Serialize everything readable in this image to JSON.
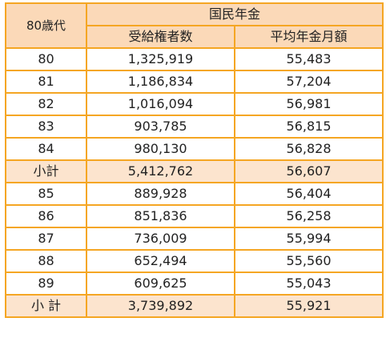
{
  "table": {
    "corner_label": "80歳代",
    "group_header": "国民年金",
    "col_recipients": "受給権者数",
    "col_avg_amount": "平均年金月額",
    "rows": [
      {
        "age": "80",
        "recipients": "1,325,919",
        "avg": "55,483",
        "subtotal": false
      },
      {
        "age": "81",
        "recipients": "1,186,834",
        "avg": "57,204",
        "subtotal": false
      },
      {
        "age": "82",
        "recipients": "1,016,094",
        "avg": "56,981",
        "subtotal": false
      },
      {
        "age": "83",
        "recipients": "903,785",
        "avg": "56,815",
        "subtotal": false
      },
      {
        "age": "84",
        "recipients": "980,130",
        "avg": "56,828",
        "subtotal": false
      },
      {
        "age": "小計",
        "recipients": "5,412,762",
        "avg": "56,607",
        "subtotal": true
      },
      {
        "age": "85",
        "recipients": "889,928",
        "avg": "56,404",
        "subtotal": false
      },
      {
        "age": "86",
        "recipients": "851,836",
        "avg": "56,258",
        "subtotal": false
      },
      {
        "age": "87",
        "recipients": "736,009",
        "avg": "55,994",
        "subtotal": false
      },
      {
        "age": "88",
        "recipients": "652,494",
        "avg": "55,560",
        "subtotal": false
      },
      {
        "age": "89",
        "recipients": "609,625",
        "avg": "55,043",
        "subtotal": false
      },
      {
        "age": "小 計",
        "recipients": "3,739,892",
        "avg": "55,921",
        "subtotal": true
      }
    ]
  },
  "colors": {
    "border": "#f5a623",
    "header_bg": "#fbd9b8",
    "subtotal_bg": "#fce4ce"
  }
}
